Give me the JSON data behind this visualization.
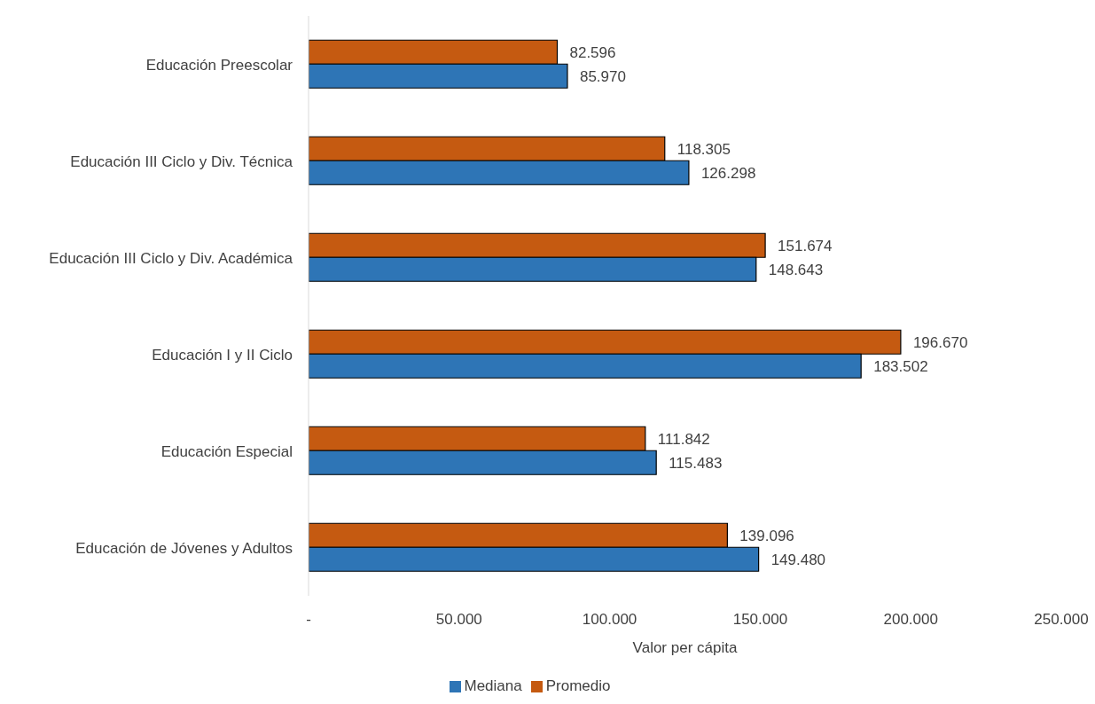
{
  "chart_data": {
    "type": "bar",
    "orientation": "horizontal",
    "xlabel": "Valor per cápita",
    "categories": [
      "Educación Preescolar",
      "Educación III Ciclo y Div. Técnica",
      "Educación III Ciclo y Div. Académica",
      "Educación I y II Ciclo",
      "Educación Especial",
      "Educación de Jóvenes y Adultos"
    ],
    "series": [
      {
        "name": "Promedio",
        "color": "#c55a11",
        "values": [
          82596,
          118305,
          151674,
          196670,
          111842,
          139096
        ],
        "value_labels": [
          "82.596",
          "118.305",
          "151.674",
          "196.670",
          "111.842",
          "139.096"
        ]
      },
      {
        "name": "Mediana",
        "color": "#2e75b6",
        "values": [
          85970,
          126298,
          148643,
          183502,
          115483,
          149480
        ],
        "value_labels": [
          "85.970",
          "126.298",
          "148.643",
          "183.502",
          "115.483",
          "149.480"
        ]
      }
    ],
    "xlim": [
      0,
      250000
    ],
    "xticks": [
      {
        "value": 0,
        "label": "-"
      },
      {
        "value": 50000,
        "label": "50.000"
      },
      {
        "value": 100000,
        "label": "100.000"
      },
      {
        "value": 150000,
        "label": "150.000"
      },
      {
        "value": 200000,
        "label": "200.000"
      },
      {
        "value": 250000,
        "label": "250.000"
      }
    ],
    "grid": false,
    "legend": "bottom"
  }
}
